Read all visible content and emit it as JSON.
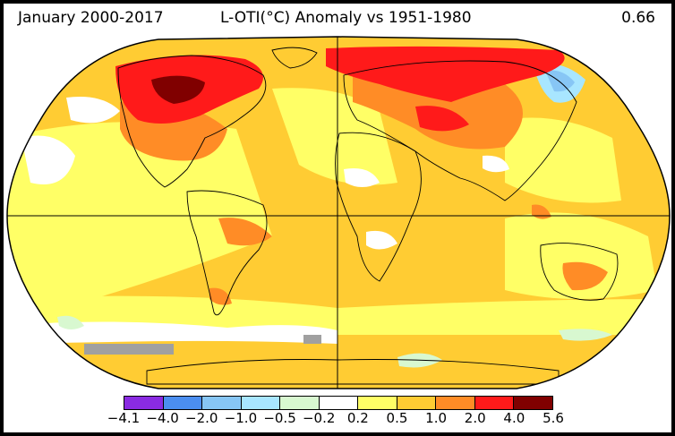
{
  "header": {
    "period": "January 2000-2017",
    "title": "L-OTI(°C) Anomaly vs 1951-1980",
    "global_mean": "0.66"
  },
  "legend": {
    "colors": [
      "#8a2be2",
      "#4b8ef0",
      "#87c6f5",
      "#a8e6ff",
      "#d8f8d0",
      "#ffffff",
      "#ffff66",
      "#ffcc33",
      "#ff8c26",
      "#ff1a1a",
      "#800000"
    ],
    "labels": [
      "−4.1",
      "−4.0",
      "−2.0",
      "−1.0",
      "−0.5",
      "−0.2",
      "0.2",
      "0.5",
      "1.0",
      "2.0",
      "4.0",
      "5.6"
    ]
  },
  "map_colors": {
    "ocean_base": "#ffcc33",
    "land_base": "#ffcc33",
    "missing": "#a0a0a0",
    "neutral": "#ffffff"
  }
}
